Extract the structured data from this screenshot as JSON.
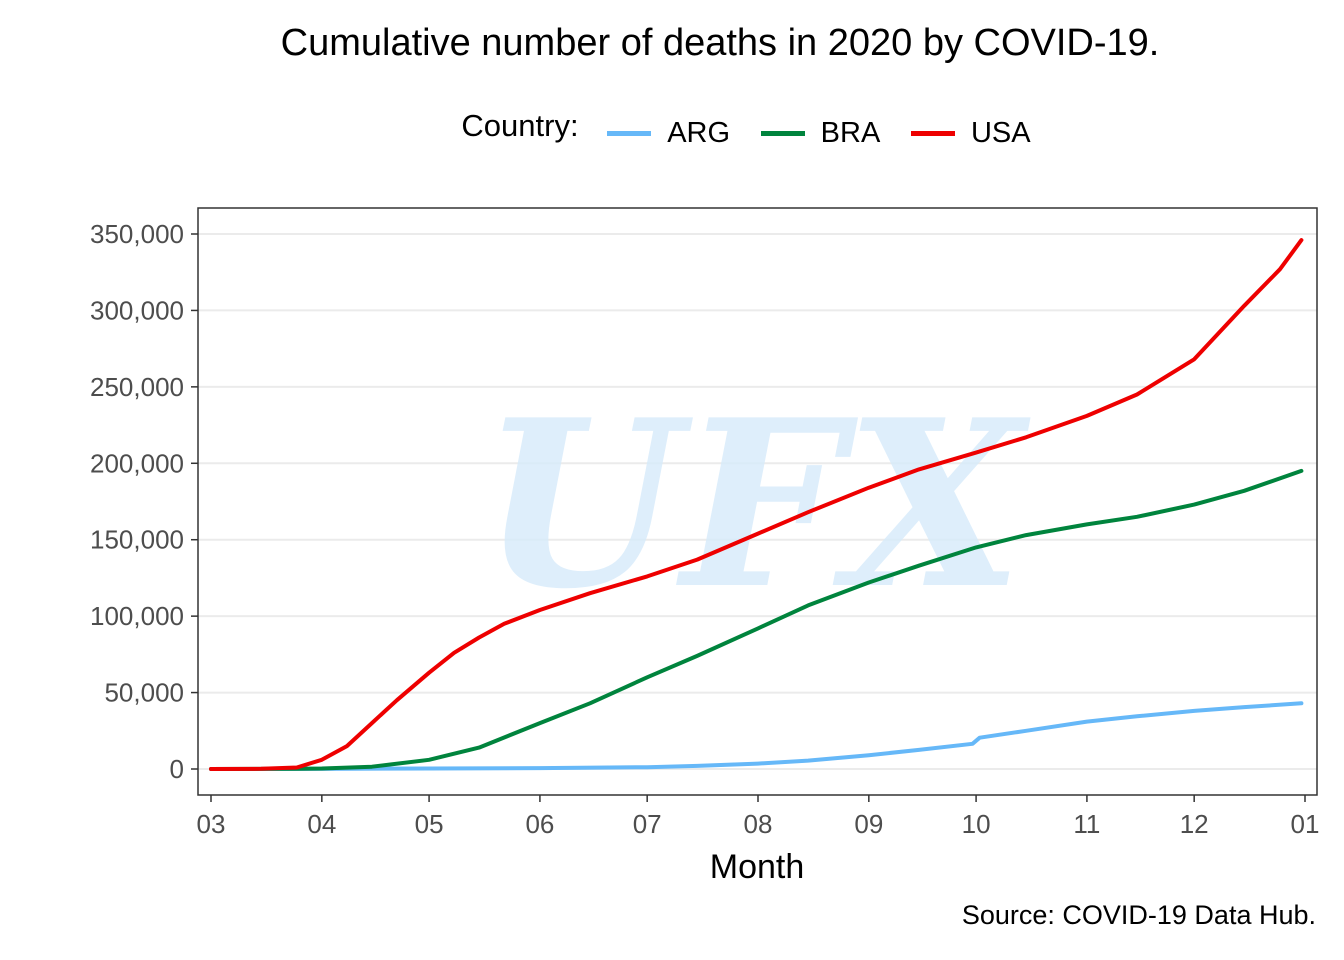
{
  "chart_data": {
    "type": "line",
    "title": "Cumulative number of deaths in 2020 by COVID-19.",
    "caption": "Source: COVID-19 Data Hub.",
    "xlabel": "Month",
    "ylabel": "",
    "watermark": "UFX",
    "legend": {
      "title": "Country:",
      "position": "top"
    },
    "grid": {
      "horizontal": true,
      "vertical": false
    },
    "xlim": [
      "2020-03-01",
      "2021-01-01"
    ],
    "ylim": [
      0,
      350000
    ],
    "x_ticks": [
      {
        "date": "2020-03-01",
        "label": "03"
      },
      {
        "date": "2020-04-01",
        "label": "04"
      },
      {
        "date": "2020-05-01",
        "label": "05"
      },
      {
        "date": "2020-06-01",
        "label": "06"
      },
      {
        "date": "2020-07-01",
        "label": "07"
      },
      {
        "date": "2020-08-01",
        "label": "08"
      },
      {
        "date": "2020-09-01",
        "label": "09"
      },
      {
        "date": "2020-10-01",
        "label": "10"
      },
      {
        "date": "2020-11-01",
        "label": "11"
      },
      {
        "date": "2020-12-01",
        "label": "12"
      },
      {
        "date": "2021-01-01",
        "label": "01"
      }
    ],
    "y_ticks": [
      {
        "value": 0,
        "label": "0"
      },
      {
        "value": 50000,
        "label": "50,000"
      },
      {
        "value": 100000,
        "label": "100,000"
      },
      {
        "value": 150000,
        "label": "150,000"
      },
      {
        "value": 200000,
        "label": "200,000"
      },
      {
        "value": 250000,
        "label": "250,000"
      },
      {
        "value": 300000,
        "label": "300,000"
      },
      {
        "value": 350000,
        "label": "350,000"
      }
    ],
    "series": [
      {
        "name": "ARG",
        "color": "#66b8f8",
        "points": [
          [
            "2020-03-01",
            0
          ],
          [
            "2020-04-01",
            50
          ],
          [
            "2020-05-01",
            300
          ],
          [
            "2020-06-01",
            600
          ],
          [
            "2020-07-01",
            1200
          ],
          [
            "2020-07-15",
            2000
          ],
          [
            "2020-08-01",
            3500
          ],
          [
            "2020-08-15",
            5500
          ],
          [
            "2020-09-01",
            9000
          ],
          [
            "2020-09-15",
            12500
          ],
          [
            "2020-09-30",
            16500
          ],
          [
            "2020-10-02",
            20500
          ],
          [
            "2020-10-15",
            25000
          ],
          [
            "2020-11-01",
            31000
          ],
          [
            "2020-11-15",
            34500
          ],
          [
            "2020-12-01",
            38000
          ],
          [
            "2020-12-15",
            40500
          ],
          [
            "2020-12-31",
            43000
          ]
        ]
      },
      {
        "name": "BRA",
        "color": "#00843d",
        "points": [
          [
            "2020-03-01",
            0
          ],
          [
            "2020-03-25",
            200
          ],
          [
            "2020-04-01",
            300
          ],
          [
            "2020-04-15",
            1500
          ],
          [
            "2020-05-01",
            6000
          ],
          [
            "2020-05-15",
            14000
          ],
          [
            "2020-06-01",
            30000
          ],
          [
            "2020-06-15",
            43000
          ],
          [
            "2020-07-01",
            60000
          ],
          [
            "2020-07-15",
            74000
          ],
          [
            "2020-08-01",
            92000
          ],
          [
            "2020-08-15",
            107000
          ],
          [
            "2020-09-01",
            122000
          ],
          [
            "2020-09-15",
            133000
          ],
          [
            "2020-10-01",
            145000
          ],
          [
            "2020-10-15",
            153000
          ],
          [
            "2020-11-01",
            160000
          ],
          [
            "2020-11-15",
            165000
          ],
          [
            "2020-12-01",
            173000
          ],
          [
            "2020-12-15",
            182000
          ],
          [
            "2020-12-31",
            195000
          ]
        ]
      },
      {
        "name": "USA",
        "color": "#ee0000",
        "points": [
          [
            "2020-03-01",
            0
          ],
          [
            "2020-03-15",
            100
          ],
          [
            "2020-03-25",
            1000
          ],
          [
            "2020-04-01",
            6000
          ],
          [
            "2020-04-08",
            15000
          ],
          [
            "2020-04-15",
            30000
          ],
          [
            "2020-04-22",
            45000
          ],
          [
            "2020-05-01",
            63000
          ],
          [
            "2020-05-08",
            76000
          ],
          [
            "2020-05-15",
            86000
          ],
          [
            "2020-05-22",
            95000
          ],
          [
            "2020-06-01",
            104000
          ],
          [
            "2020-06-15",
            115000
          ],
          [
            "2020-07-01",
            126000
          ],
          [
            "2020-07-15",
            137000
          ],
          [
            "2020-08-01",
            154000
          ],
          [
            "2020-08-15",
            168000
          ],
          [
            "2020-09-01",
            184000
          ],
          [
            "2020-09-15",
            196000
          ],
          [
            "2020-10-01",
            207000
          ],
          [
            "2020-10-15",
            217000
          ],
          [
            "2020-11-01",
            231000
          ],
          [
            "2020-11-15",
            245000
          ],
          [
            "2020-12-01",
            268000
          ],
          [
            "2020-12-15",
            303000
          ],
          [
            "2020-12-25",
            327000
          ],
          [
            "2020-12-31",
            346000
          ]
        ]
      }
    ]
  }
}
